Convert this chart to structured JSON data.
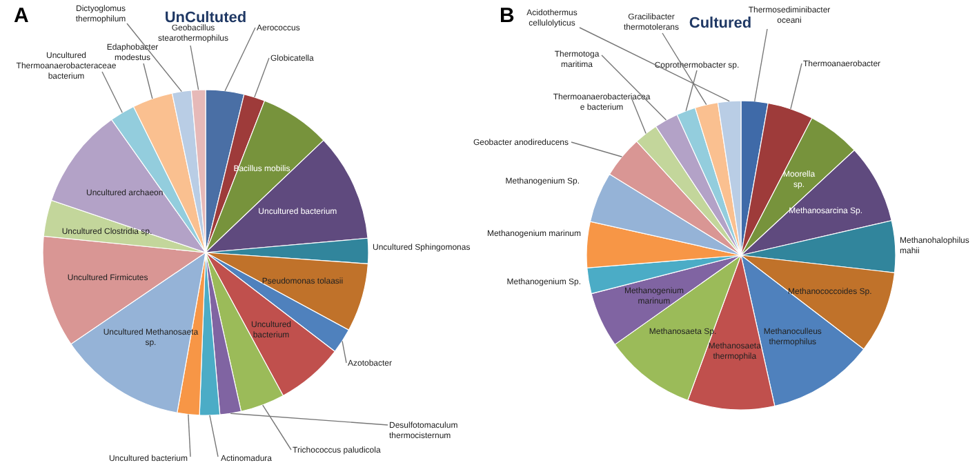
{
  "chart_data": [
    {
      "type": "pie",
      "title": "UnCultuted",
      "annotations": [
        "A"
      ],
      "categories": [
        "Aerococcus",
        "Globicatella",
        "Bacillus mobilis",
        "Uncultured bacterium",
        "Uncultured Sphingomonas",
        "Pseudomonas tolaasii",
        "Azotobacter",
        "Uncultured bacterium",
        "Trichococcus paludicola",
        "Desulfotomaculum thermocisternum",
        "Actinomadura",
        "Uncultured bacterium",
        "Uncultured Methanosaeta sp.",
        "Uncultured Firmicutes",
        "Uncultured Clostridia  sp.",
        "Uncultured archaeon",
        "Uncultured Thermoanaerobacteraceae bacterium",
        "Edaphobacter modestus",
        "Dictyoglomus thermophilum",
        "Geobacillus stearothermophilus"
      ],
      "values": [
        3.8,
        2.1,
        7,
        10.7,
        2.5,
        6.8,
        2.5,
        6.7,
        4.4,
        2.1,
        2,
        2.2,
        12.7,
        11.1,
        3.6,
        10,
        2.5,
        4,
        1.9,
        1.4
      ],
      "colors": [
        "#4a6fa5",
        "#9e3b3a",
        "#77933c",
        "#5f4a7e",
        "#31859c",
        "#c0722a",
        "#4f81bd",
        "#c0504d",
        "#9bbb59",
        "#8064a2",
        "#4bacc6",
        "#f79646",
        "#95b3d7",
        "#d99694",
        "#c3d69b",
        "#b3a2c7",
        "#93cddd",
        "#fac090",
        "#b9cde5",
        "#e6b9b8"
      ]
    },
    {
      "type": "pie",
      "title": "Cultured",
      "annotations": [
        "B"
      ],
      "categories": [
        "Thermosediminibacter oceani",
        "Thermoanaerobacter",
        "Moorella sp.",
        "Methanosarcina Sp.",
        "Methanohalophilus mahii",
        "Methanococcoides Sp.",
        "Methanoculleus thermophilus",
        "Methanosaeta thermophila",
        "Methanosaeta Sp.",
        "Methanogenium marinum",
        "Methanogenium Sp.",
        "Methanogenium marinum",
        "Methanogenium Sp.",
        "Geobacter anodireducens",
        "Thermoanaerobacteriacea e bacterium",
        "Thermotoga maritima",
        "Coprothermobacter sp.",
        "Gracilibacter thermotolerans",
        "Acidothermus cellulolyticus"
      ],
      "values": [
        2.8,
        4.8,
        5.5,
        8.3,
        5.4,
        8.6,
        11.1,
        9.1,
        9.6,
        5.8,
        2.7,
        4.8,
        5.3,
        4.4,
        2.5,
        2.5,
        2,
        2.4,
        2.4
      ],
      "colors": [
        "#3f6aa8",
        "#9e3b3a",
        "#77933c",
        "#5f4a7e",
        "#31859c",
        "#c0722a",
        "#4f81bd",
        "#c0504d",
        "#9bbb59",
        "#8064a2",
        "#4bacc6",
        "#f79646",
        "#95b3d7",
        "#d99694",
        "#c3d69b",
        "#b3a2c7",
        "#93cddd",
        "#fac090",
        "#b9cde5"
      ]
    }
  ]
}
